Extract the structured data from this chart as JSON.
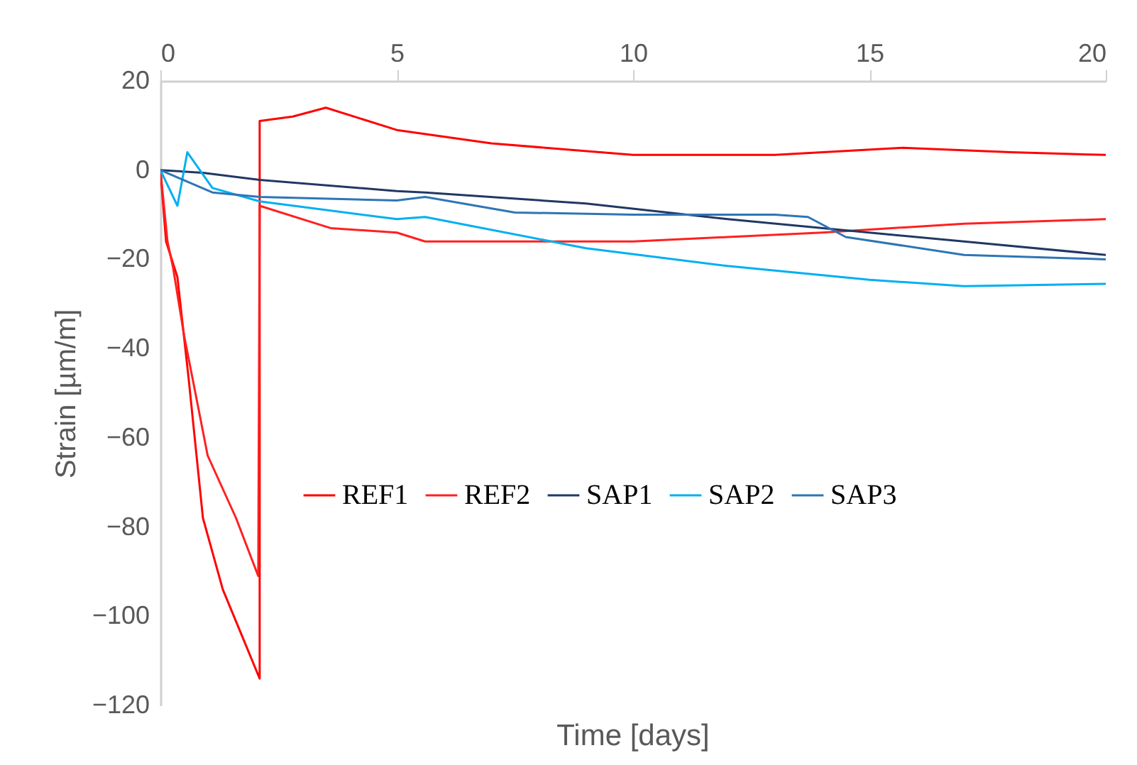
{
  "chart_data": {
    "type": "line",
    "xlabel": "Time [days]",
    "ylabel": "Strain [µm/m]",
    "xlim": [
      0,
      20
    ],
    "xticks": [
      0,
      5,
      10,
      15,
      20
    ],
    "ylim": [
      -120,
      20
    ],
    "yticks": [
      -120,
      -100,
      -80,
      -60,
      -40,
      -20,
      0,
      20
    ],
    "grid": false,
    "legend": "bottom",
    "marker": "none",
    "line_style": "solid",
    "tick_labels": "xy",
    "series": [
      {
        "name": "REF1",
        "color": "#ff0000",
        "x": [
          0,
          0.12,
          0.36,
          0.6,
          0.9,
          1.32,
          1.71,
          2.1,
          2.1,
          2.8,
          3.5,
          5,
          7,
          10,
          13,
          15.7,
          18,
          20
        ],
        "values": [
          0,
          -16,
          -24,
          -47,
          -78,
          -94,
          -104,
          -114,
          11,
          12,
          14,
          9,
          6,
          3.4,
          3.4,
          5,
          4,
          3.4
        ]
      },
      {
        "name": "REF2",
        "color": "#ff2020",
        "x": [
          0,
          0.15,
          0.27,
          0.5,
          1,
          1.6,
          2.07,
          2.1,
          3.6,
          5,
          5.6,
          8,
          10,
          12,
          14,
          17,
          20
        ],
        "values": [
          0,
          -16,
          -22,
          -37,
          -64,
          -78,
          -91,
          -8,
          -13,
          -14,
          -16,
          -16,
          -16,
          -15,
          -14,
          -12,
          -11
        ]
      },
      {
        "name": "SAP1",
        "color": "#203864",
        "x": [
          0,
          0.9,
          2.1,
          5,
          5.6,
          9,
          12,
          15,
          17,
          20
        ],
        "values": [
          0,
          -0.6,
          -2.2,
          -4.7,
          -5,
          -7.5,
          -11,
          -14,
          -16,
          -19
        ]
      },
      {
        "name": "SAP2",
        "color": "#00b0f0",
        "x": [
          0,
          0.36,
          0.57,
          1.1,
          2.1,
          5,
          5.6,
          9,
          12,
          15,
          17,
          20
        ],
        "values": [
          0,
          -8,
          4,
          -4,
          -7,
          -11,
          -10.5,
          -17.5,
          -21.5,
          -24.6,
          -26,
          -25.5
        ]
      },
      {
        "name": "SAP3",
        "color": "#2e75b6",
        "x": [
          0,
          1.1,
          2.1,
          5,
          5.6,
          7.5,
          10,
          13,
          13.7,
          14.5,
          17,
          20
        ],
        "values": [
          0,
          -5,
          -6,
          -6.8,
          -6,
          -9.5,
          -10,
          -10,
          -10.5,
          -15,
          -19,
          -20
        ]
      }
    ]
  }
}
